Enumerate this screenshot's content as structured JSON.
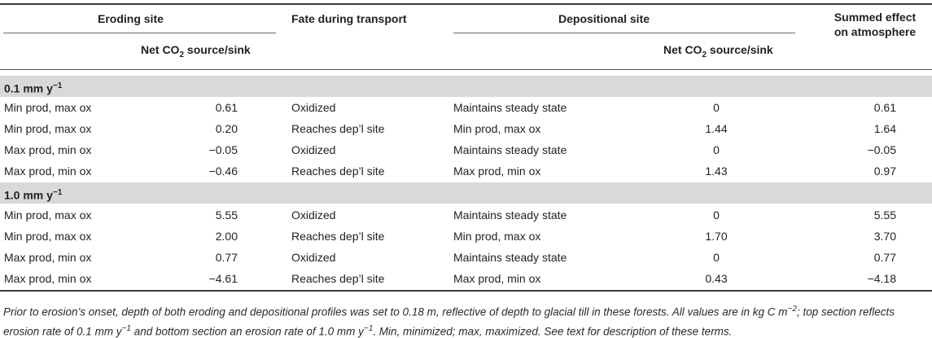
{
  "headers": {
    "eroding_site": "Eroding site",
    "fate": "Fate during transport",
    "depositional_site": "Depositional site",
    "summed_line1": "Summed effect",
    "summed_line2": "on atmosphere",
    "net_co2_prefix": "Net CO",
    "net_co2_sub": "2",
    "net_co2_suffix": " source/sink"
  },
  "sections": [
    {
      "label_prefix": "0.1 mm y",
      "label_sup": "−1",
      "rows": [
        {
          "erode": "Min prod, max ox",
          "erode_val": "0.61",
          "fate": "Oxidized",
          "dep": "Maintains steady state",
          "dep_val": "0",
          "sum": "0.61"
        },
        {
          "erode": "Min prod, max ox",
          "erode_val": "0.20",
          "fate": "Reaches dep’l site",
          "dep": "Min prod, max ox",
          "dep_val": "1.44",
          "sum": "1.64"
        },
        {
          "erode": "Max prod, min ox",
          "erode_val": "−0.05",
          "fate": "Oxidized",
          "dep": "Maintains steady state",
          "dep_val": "0",
          "sum": "−0.05"
        },
        {
          "erode": "Max prod, min ox",
          "erode_val": "−0.46",
          "fate": "Reaches dep’l site",
          "dep": "Max prod, min ox",
          "dep_val": "1.43",
          "sum": "0.97"
        }
      ]
    },
    {
      "label_prefix": "1.0 mm y",
      "label_sup": "−1",
      "rows": [
        {
          "erode": "Min prod, max ox",
          "erode_val": "5.55",
          "fate": "Oxidized",
          "dep": "Maintains steady state",
          "dep_val": "0",
          "sum": "5.55"
        },
        {
          "erode": "Min prod, max ox",
          "erode_val": "2.00",
          "fate": "Reaches dep’l site",
          "dep": "Min prod, max ox",
          "dep_val": "1.70",
          "sum": "3.70"
        },
        {
          "erode": "Max prod, min ox",
          "erode_val": "0.77",
          "fate": "Oxidized",
          "dep": "Maintains steady state",
          "dep_val": "0",
          "sum": "0.77"
        },
        {
          "erode": "Max prod, min ox",
          "erode_val": "−4.61",
          "fate": "Reaches dep’l site",
          "dep": "Max prod, min ox",
          "dep_val": "0.43",
          "sum": "−4.18"
        }
      ]
    }
  ],
  "footnote": {
    "p1": "Prior to erosion’s onset, depth of both eroding and depositional profiles was set to 0.18 m, reflective of depth to glacial till in these forests. All values are in kg C m",
    "p1_sup": "−2",
    "p2": "; top section reflects",
    "p3": "erosion rate of 0.1 mm y",
    "p3_sup": "−1",
    "p4": " and bottom section an erosion rate of 1.0 mm y",
    "p4_sup": "−1",
    "p5": ". Min, minimized; max, maximized. See text for description of these terms."
  }
}
